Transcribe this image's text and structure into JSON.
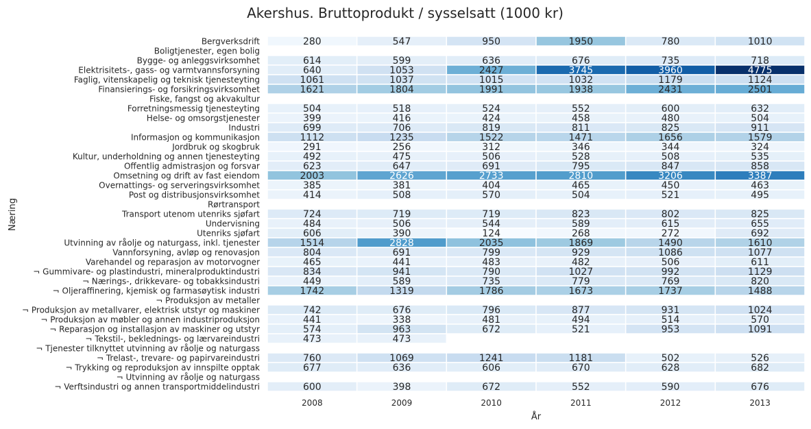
{
  "chart_data": {
    "type": "heatmap",
    "title": "Akershus. Bruttoprodukt / sysselsatt (1000 kr)",
    "xlabel": "År",
    "ylabel": "Næring",
    "x": [
      "2008",
      "2009",
      "2010",
      "2011",
      "2012",
      "2013"
    ],
    "y": [
      "Bergverksdrift",
      "Boligtjenester, egen bolig",
      "Bygge- og anleggsvirksomhet",
      "Elektrisitets-, gass- og varmtvannsforsyning",
      "Faglig, vitenskapelig og teknisk tjenesteyting",
      "Finansierings- og forsikringsvirksomhet",
      "Fiske, fangst og akvakultur",
      "Forretningsmessig tjenesteyting",
      "Helse- og omsorgstjenester",
      "Industri",
      "Informasjon og kommunikasjon",
      "Jordbruk og skogbruk",
      "Kultur, underholdning og annen tjenesteyting",
      "Offentlig admistrasjon og forsvar",
      "Omsetning og drift av fast eiendom",
      "Overnattings- og serveringsvirksomhet",
      "Post og distribusjonsvirksomhet",
      "Rørtransport",
      "Transport utenom utenriks sjøfart",
      "Undervisning",
      "Utenriks sjøfart",
      "Utvinning av råolje og naturgass, inkl. tjenester",
      "Vannforsyning, avløp og renovasjon",
      "Varehandel og reparasjon av motorvogner",
      "¬ Gummivare- og plastindustri, mineralproduktindustri",
      "¬ Nærings-, drikkevare- og tobakksindustri",
      "¬ Oljeraffinering, kjemisk og farmasøytisk industri",
      "¬ Produksjon av metaller",
      "¬ Produksjon av metallvarer, elektrisk utstyr og maskiner",
      "¬ Produksjon av møbler og annen industriproduksjon",
      "¬ Reparasjon og installasjon av maskiner og utstyr",
      "¬ Tekstil-, beklednings- og lærvareindustri",
      "¬ Tjenester tilknyttet utvinning av råolje og naturgass",
      "¬ Trelast-, trevare- og papirvareindustri",
      "¬ Trykking og reproduksjon av innspilte opptak",
      "¬ Utvinning av råolje og naturgass",
      "¬ Verftsindustri og annen transportmiddelindustri"
    ],
    "values": [
      [
        280,
        547,
        950,
        1950,
        780,
        1010
      ],
      [
        null,
        null,
        null,
        null,
        null,
        null
      ],
      [
        614,
        599,
        636,
        676,
        735,
        718
      ],
      [
        640,
        1053,
        2427,
        3745,
        3960,
        4775
      ],
      [
        1061,
        1037,
        1015,
        1032,
        1179,
        1124
      ],
      [
        1621,
        1804,
        1991,
        1938,
        2431,
        2501
      ],
      [
        null,
        null,
        null,
        null,
        null,
        null
      ],
      [
        504,
        518,
        524,
        552,
        600,
        632
      ],
      [
        399,
        416,
        424,
        458,
        480,
        504
      ],
      [
        699,
        706,
        819,
        811,
        825,
        911
      ],
      [
        1112,
        1235,
        1522,
        1471,
        1656,
        1579
      ],
      [
        291,
        256,
        312,
        346,
        344,
        324
      ],
      [
        492,
        475,
        506,
        528,
        508,
        535
      ],
      [
        623,
        647,
        691,
        795,
        847,
        858
      ],
      [
        2003,
        2626,
        2733,
        2810,
        3206,
        3387
      ],
      [
        385,
        381,
        404,
        465,
        450,
        463
      ],
      [
        414,
        508,
        570,
        504,
        521,
        495
      ],
      [
        null,
        null,
        null,
        null,
        null,
        null
      ],
      [
        724,
        719,
        719,
        823,
        802,
        825
      ],
      [
        484,
        506,
        544,
        589,
        615,
        655
      ],
      [
        606,
        390,
        124,
        268,
        272,
        692
      ],
      [
        1514,
        2828,
        2035,
        1869,
        1490,
        1610
      ],
      [
        804,
        691,
        799,
        929,
        1086,
        1077
      ],
      [
        465,
        441,
        483,
        482,
        506,
        611
      ],
      [
        834,
        941,
        790,
        1027,
        992,
        1129
      ],
      [
        449,
        589,
        735,
        779,
        769,
        820
      ],
      [
        1742,
        1319,
        1786,
        1673,
        1737,
        1488
      ],
      [
        null,
        null,
        null,
        null,
        null,
        null
      ],
      [
        742,
        676,
        796,
        877,
        931,
        1024
      ],
      [
        441,
        338,
        481,
        494,
        514,
        570
      ],
      [
        574,
        963,
        672,
        521,
        953,
        1091
      ],
      [
        473,
        473,
        null,
        null,
        null,
        null
      ],
      [
        null,
        null,
        null,
        null,
        null,
        null
      ],
      [
        760,
        1069,
        1241,
        1181,
        502,
        526
      ],
      [
        677,
        636,
        606,
        670,
        628,
        682
      ],
      [
        null,
        null,
        null,
        null,
        null,
        null
      ],
      [
        600,
        398,
        672,
        552,
        590,
        676
      ]
    ],
    "colormap": "Blues",
    "legend": "none"
  }
}
